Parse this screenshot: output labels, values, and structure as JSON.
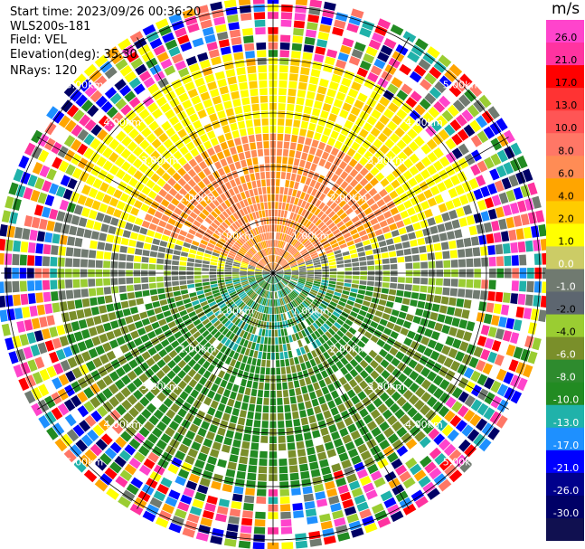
{
  "header": {
    "start_time": "Start time: 2023/09/26 00:36:20",
    "instrument": "WLS200s-181",
    "field": "Field: VEL",
    "elevation": "Elevation(deg): 35.30",
    "nrays": "NRays: 120"
  },
  "chart_data": {
    "type": "heatmap",
    "projection": "polar-ppi",
    "rays": 120,
    "range_rings_km": [
      1.0,
      2.0,
      3.0,
      4.0,
      5.0
    ],
    "range_labels": [
      "1.00km",
      "2.00km",
      "3.00km",
      "4.00km",
      "5.00km"
    ],
    "azimuth_spokes_deg": [
      0,
      30,
      60,
      90,
      120,
      150,
      180,
      210,
      240,
      270,
      300,
      330
    ],
    "velocity_zones": [
      {
        "sector": "north",
        "range_km": [
          0.3,
          2.6
        ],
        "values_m_s": [
          4.0,
          8.0
        ]
      },
      {
        "sector": "north",
        "range_km": [
          2.6,
          3.8
        ],
        "values_m_s": [
          2.0,
          6.0
        ]
      },
      {
        "sector": "east-west",
        "range_km": [
          0.3,
          3.8
        ],
        "values_m_s": [
          -1.0,
          1.0
        ]
      },
      {
        "sector": "south",
        "range_km": [
          0.3,
          3.8
        ],
        "values_m_s": [
          -8.0,
          -2.0
        ]
      },
      {
        "sector": "all",
        "range_km": [
          3.8,
          5.5
        ],
        "values_m_s": "noise (-30.0 to 26.0)"
      }
    ]
  },
  "colorbar": {
    "unit": "m/s",
    "ticks": [
      "26.0",
      "21.0",
      "17.0",
      "13.0",
      "10.0",
      "8.0",
      "6.0",
      "4.0",
      "2.0",
      "1.0",
      "0.0",
      "-1.0",
      "-2.0",
      "-4.0",
      "-6.0",
      "-8.0",
      "-10.0",
      "-13.0",
      "-17.0",
      "-21.0",
      "-26.0",
      "-30.0"
    ],
    "colors": [
      "#ff44cc",
      "#ff33a0",
      "#ff0000",
      "#ff3333",
      "#ff5555",
      "#ff7766",
      "#ff8c55",
      "#ffa500",
      "#ffcc00",
      "#ffff00",
      "#cccc66",
      "#707a70",
      "#5d6670",
      "#9acd32",
      "#7a8f2a",
      "#2e8b2e",
      "#228b22",
      "#20b2aa",
      "#1e90ff",
      "#0000ff",
      "#00008b",
      "#000066",
      "#101050"
    ]
  }
}
